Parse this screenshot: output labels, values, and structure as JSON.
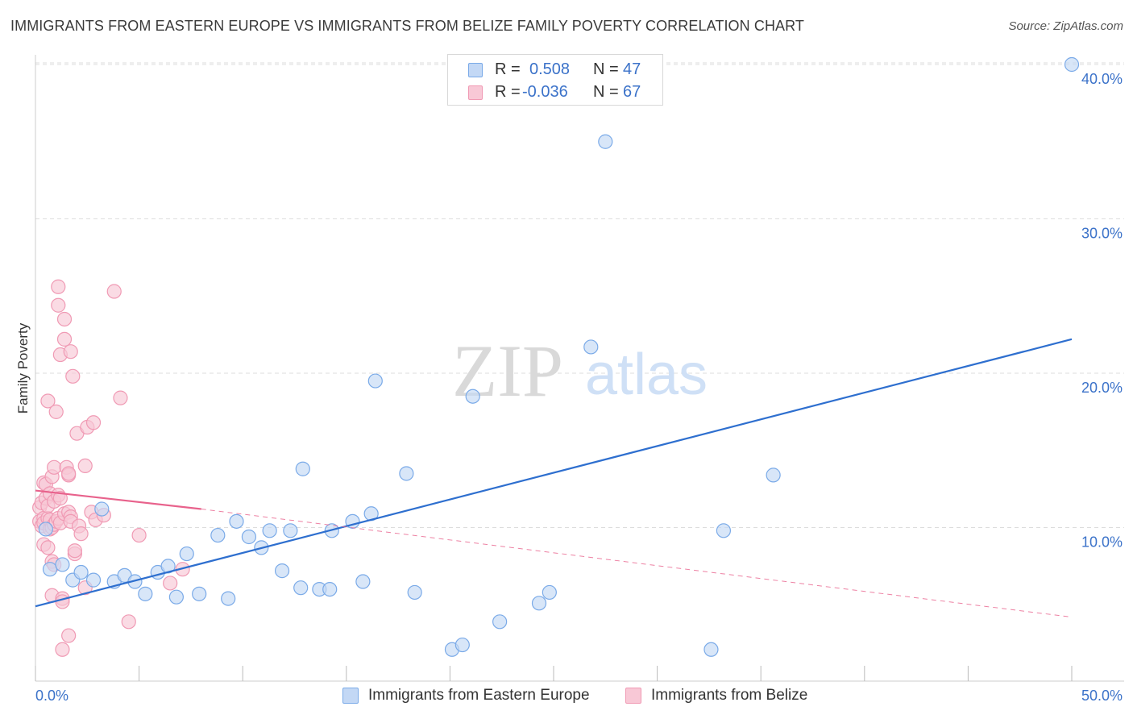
{
  "title": "IMMIGRANTS FROM EASTERN EUROPE VS IMMIGRANTS FROM BELIZE FAMILY POVERTY CORRELATION CHART",
  "source": "Source: ZipAtlas.com",
  "watermark": {
    "zip": "ZIP",
    "atlas": "atlas"
  },
  "legend": {
    "rows": [
      {
        "r_label": "R =",
        "r_value": "0.508",
        "n_label": "N =",
        "n_value": "47",
        "color": "#7aaae8"
      },
      {
        "r_label": "R =",
        "r_value": "-0.036",
        "n_label": "N =",
        "n_value": "67",
        "color": "#f09ab4"
      }
    ]
  },
  "bottom_legend": {
    "series1": "Immigrants from Eastern Europe",
    "series2": "Immigrants from Belize"
  },
  "colors": {
    "blue_fill": "#c3d8f5",
    "blue_stroke": "#7aaae8",
    "blue_line": "#2e6fcf",
    "pink_fill": "#f8c8d6",
    "pink_stroke": "#f09ab4",
    "pink_line": "#e8628c",
    "axis_text": "#3b72c9",
    "grid": "#dddddd"
  },
  "chart_data": {
    "type": "scatter",
    "title": "IMMIGRANTS FROM EASTERN EUROPE VS IMMIGRANTS FROM BELIZE FAMILY POVERTY CORRELATION CHART",
    "xlabel": "",
    "ylabel": "Family Poverty",
    "xlim": [
      0,
      50
    ],
    "ylim": [
      0,
      41.5
    ],
    "x_tick_labels": [
      "0.0%",
      "50.0%"
    ],
    "y_ticks": [
      10,
      20,
      30,
      40
    ],
    "y_tick_labels": [
      "10.0%",
      "20.0%",
      "30.0%",
      "40.0%"
    ],
    "grid": true,
    "series": [
      {
        "name": "Immigrants from Eastern Europe",
        "r": 0.508,
        "n": 47,
        "points": [
          [
            0.5,
            9.9
          ],
          [
            0.7,
            7.3
          ],
          [
            1.3,
            7.6
          ],
          [
            1.8,
            6.6
          ],
          [
            2.2,
            7.1
          ],
          [
            2.8,
            6.6
          ],
          [
            3.2,
            11.2
          ],
          [
            3.8,
            6.5
          ],
          [
            4.3,
            6.9
          ],
          [
            4.8,
            6.5
          ],
          [
            5.3,
            5.7
          ],
          [
            5.9,
            7.1
          ],
          [
            6.4,
            7.5
          ],
          [
            6.8,
            5.5
          ],
          [
            7.3,
            8.3
          ],
          [
            7.9,
            5.7
          ],
          [
            8.8,
            9.5
          ],
          [
            9.3,
            5.4
          ],
          [
            9.7,
            10.4
          ],
          [
            10.3,
            9.4
          ],
          [
            10.9,
            8.7
          ],
          [
            11.3,
            9.8
          ],
          [
            11.9,
            7.2
          ],
          [
            12.3,
            9.8
          ],
          [
            12.8,
            6.1
          ],
          [
            12.9,
            13.8
          ],
          [
            13.7,
            6.0
          ],
          [
            14.2,
            6.0
          ],
          [
            14.3,
            9.8
          ],
          [
            15.3,
            10.4
          ],
          [
            15.8,
            6.5
          ],
          [
            16.2,
            10.9
          ],
          [
            16.4,
            19.5
          ],
          [
            17.9,
            13.5
          ],
          [
            18.3,
            5.8
          ],
          [
            20.1,
            2.1
          ],
          [
            20.6,
            2.4
          ],
          [
            21.1,
            18.5
          ],
          [
            22.4,
            3.9
          ],
          [
            24.3,
            5.1
          ],
          [
            24.8,
            5.8
          ],
          [
            26.8,
            21.7
          ],
          [
            27.5,
            35.0
          ],
          [
            32.6,
            2.1
          ],
          [
            33.2,
            9.8
          ],
          [
            35.6,
            13.4
          ],
          [
            50.0,
            40.0
          ]
        ],
        "trend": {
          "x": [
            0,
            50
          ],
          "y": [
            4.9,
            22.2
          ]
        }
      },
      {
        "name": "Immigrants from Belize",
        "r": -0.036,
        "n": 67,
        "points": [
          [
            0.2,
            10.4
          ],
          [
            0.2,
            11.3
          ],
          [
            0.3,
            10.1
          ],
          [
            0.3,
            11.6
          ],
          [
            0.4,
            12.9
          ],
          [
            0.4,
            10.6
          ],
          [
            0.4,
            8.9
          ],
          [
            0.4,
            10.3
          ],
          [
            0.5,
            11.9
          ],
          [
            0.5,
            12.8
          ],
          [
            0.6,
            8.7
          ],
          [
            0.6,
            10.6
          ],
          [
            0.6,
            11.4
          ],
          [
            0.6,
            18.2
          ],
          [
            0.7,
            10.5
          ],
          [
            0.7,
            9.9
          ],
          [
            0.7,
            12.2
          ],
          [
            0.8,
            5.6
          ],
          [
            0.8,
            7.8
          ],
          [
            0.8,
            13.3
          ],
          [
            0.8,
            10.0
          ],
          [
            0.9,
            13.9
          ],
          [
            0.9,
            7.6
          ],
          [
            0.9,
            11.7
          ],
          [
            0.9,
            10.2
          ],
          [
            1.0,
            17.5
          ],
          [
            1.0,
            10.4
          ],
          [
            1.1,
            12.1
          ],
          [
            1.1,
            25.6
          ],
          [
            1.1,
            24.4
          ],
          [
            1.1,
            10.6
          ],
          [
            1.2,
            11.9
          ],
          [
            1.2,
            21.2
          ],
          [
            1.2,
            10.3
          ],
          [
            1.3,
            5.4
          ],
          [
            1.3,
            5.2
          ],
          [
            1.3,
            2.1
          ],
          [
            1.4,
            23.5
          ],
          [
            1.4,
            22.2
          ],
          [
            1.4,
            10.9
          ],
          [
            1.5,
            13.9
          ],
          [
            1.6,
            13.4
          ],
          [
            1.6,
            11.0
          ],
          [
            1.6,
            3.0
          ],
          [
            1.6,
            13.5
          ],
          [
            1.7,
            21.4
          ],
          [
            1.7,
            10.7
          ],
          [
            1.7,
            10.4
          ],
          [
            1.8,
            19.8
          ],
          [
            1.9,
            8.3
          ],
          [
            1.9,
            8.5
          ],
          [
            2.0,
            16.1
          ],
          [
            2.1,
            10.1
          ],
          [
            2.2,
            9.6
          ],
          [
            2.4,
            14.0
          ],
          [
            2.4,
            6.1
          ],
          [
            2.5,
            16.5
          ],
          [
            2.7,
            11.0
          ],
          [
            2.8,
            16.8
          ],
          [
            2.9,
            10.5
          ],
          [
            3.3,
            10.8
          ],
          [
            3.8,
            25.3
          ],
          [
            4.1,
            18.4
          ],
          [
            4.5,
            3.9
          ],
          [
            5.0,
            9.5
          ],
          [
            6.5,
            6.4
          ],
          [
            7.1,
            7.3
          ]
        ],
        "trend": {
          "x": [
            0,
            8
          ],
          "y": [
            12.4,
            11.2
          ]
        },
        "trend_extended": {
          "x": [
            8,
            50
          ],
          "y": [
            11.2,
            4.2
          ]
        }
      }
    ]
  }
}
